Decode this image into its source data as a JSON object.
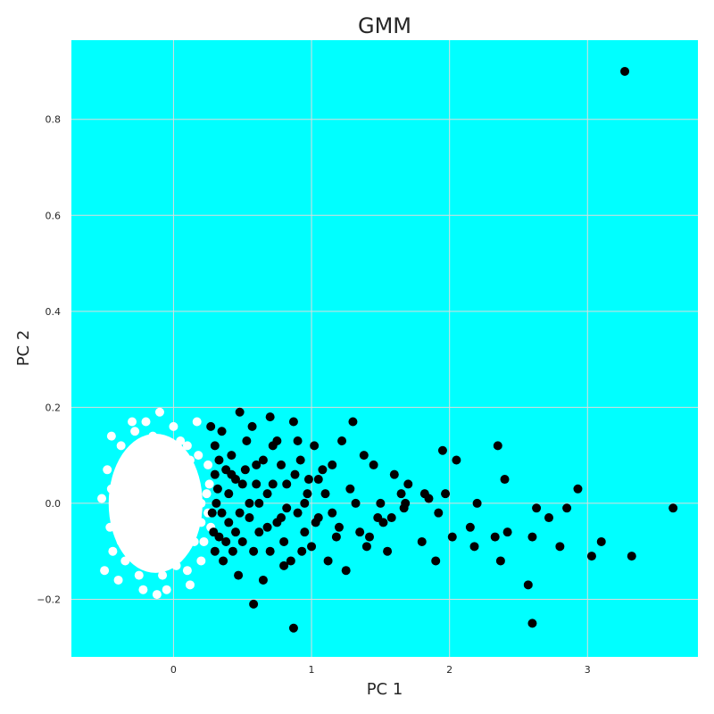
{
  "chart_data": {
    "type": "scatter",
    "title": "GMM",
    "xlabel": "PC 1",
    "ylabel": "PC 2",
    "xlim": [
      -0.74,
      3.8
    ],
    "ylim": [
      -0.32,
      0.965
    ],
    "xticks": [
      0,
      1,
      2,
      3
    ],
    "xtick_labels": [
      "0",
      "1",
      "2",
      "3"
    ],
    "yticks": [
      -0.2,
      0.0,
      0.2,
      0.4,
      0.6,
      0.8
    ],
    "ytick_labels": [
      "−0.2",
      "0.0",
      "0.2",
      "0.4",
      "0.6",
      "0.8"
    ],
    "grid": true,
    "legend": "none",
    "colors": {
      "plot_background": "#00ffff",
      "grid": "#dcdcdc",
      "cluster_0": "#ffffff",
      "cluster_1": "#000000"
    },
    "series": [
      {
        "color": "#ffffff",
        "points": [
          [
            -0.52,
            0.01
          ],
          [
            -0.45,
            0.14
          ],
          [
            -0.3,
            0.17
          ],
          [
            -0.2,
            0.17
          ],
          [
            -0.1,
            0.19
          ],
          [
            0.0,
            0.16
          ],
          [
            0.17,
            0.17
          ],
          [
            -0.5,
            -0.14
          ],
          [
            -0.4,
            -0.16
          ],
          [
            -0.22,
            -0.18
          ],
          [
            -0.12,
            -0.19
          ],
          [
            -0.05,
            -0.18
          ],
          [
            0.12,
            -0.17
          ],
          [
            0.2,
            -0.12
          ],
          [
            0.25,
            0.08
          ],
          [
            0.27,
            -0.05
          ],
          [
            -0.48,
            0.07
          ],
          [
            -0.46,
            -0.05
          ],
          [
            -0.44,
            -0.1
          ],
          [
            -0.38,
            0.12
          ],
          [
            -0.35,
            -0.12
          ],
          [
            -0.28,
            0.15
          ],
          [
            -0.25,
            -0.15
          ],
          [
            -0.15,
            0.14
          ],
          [
            -0.08,
            -0.15
          ],
          [
            0.05,
            0.13
          ],
          [
            0.1,
            -0.14
          ],
          [
            0.18,
            0.1
          ],
          [
            0.22,
            -0.08
          ],
          [
            0.24,
            0.02
          ],
          [
            0.26,
            0.04
          ],
          [
            0.25,
            -0.02
          ],
          [
            -0.4,
            0.05
          ],
          [
            -0.35,
            0.0
          ],
          [
            -0.3,
            -0.05
          ],
          [
            -0.25,
            0.08
          ],
          [
            -0.2,
            -0.08
          ],
          [
            -0.15,
            0.03
          ],
          [
            -0.1,
            -0.03
          ],
          [
            -0.05,
            0.06
          ],
          [
            0.0,
            -0.06
          ],
          [
            0.05,
            0.02
          ],
          [
            0.1,
            -0.02
          ],
          [
            0.15,
            0.05
          ],
          [
            0.2,
            -0.04
          ],
          [
            -0.32,
            0.1
          ],
          [
            -0.18,
            0.11
          ],
          [
            0.0,
            0.1
          ],
          [
            0.12,
            0.09
          ],
          [
            -0.3,
            -0.1
          ],
          [
            -0.12,
            -0.11
          ],
          [
            0.05,
            -0.1
          ],
          [
            0.15,
            -0.08
          ],
          [
            -0.42,
            -0.02
          ],
          [
            -0.38,
            -0.08
          ],
          [
            -0.22,
            0.02
          ],
          [
            -0.02,
            0.0
          ],
          [
            0.08,
            0.07
          ],
          [
            0.2,
            0.0
          ],
          [
            -0.45,
            0.03
          ],
          [
            -0.05,
            0.12
          ],
          [
            0.1,
            0.12
          ],
          [
            -0.26,
            -0.02
          ],
          [
            0.02,
            -0.13
          ]
        ]
      },
      {
        "color": "#000000",
        "points": [
          [
            3.27,
            0.9
          ],
          [
            3.62,
            -0.01
          ],
          [
            3.32,
            -0.11
          ],
          [
            3.1,
            -0.08
          ],
          [
            3.03,
            -0.11
          ],
          [
            2.93,
            0.03
          ],
          [
            2.85,
            -0.01
          ],
          [
            2.8,
            -0.09
          ],
          [
            2.72,
            -0.03
          ],
          [
            2.63,
            -0.01
          ],
          [
            2.6,
            -0.07
          ],
          [
            2.6,
            -0.25
          ],
          [
            2.57,
            -0.17
          ],
          [
            2.42,
            -0.06
          ],
          [
            2.4,
            0.05
          ],
          [
            2.37,
            -0.12
          ],
          [
            2.35,
            0.12
          ],
          [
            2.33,
            -0.07
          ],
          [
            2.2,
            0.0
          ],
          [
            2.18,
            -0.09
          ],
          [
            2.15,
            -0.05
          ],
          [
            2.05,
            0.09
          ],
          [
            2.02,
            -0.07
          ],
          [
            1.97,
            0.02
          ],
          [
            1.95,
            0.11
          ],
          [
            1.92,
            -0.02
          ],
          [
            1.9,
            -0.12
          ],
          [
            1.85,
            0.01
          ],
          [
            1.82,
            0.02
          ],
          [
            1.8,
            -0.08
          ],
          [
            1.7,
            0.04
          ],
          [
            1.68,
            0.0
          ],
          [
            1.67,
            -0.01
          ],
          [
            1.65,
            0.02
          ],
          [
            1.6,
            0.06
          ],
          [
            1.58,
            -0.03
          ],
          [
            1.55,
            -0.1
          ],
          [
            1.52,
            -0.04
          ],
          [
            1.5,
            0.0
          ],
          [
            1.48,
            -0.03
          ],
          [
            1.45,
            0.08
          ],
          [
            1.42,
            -0.07
          ],
          [
            1.4,
            -0.09
          ],
          [
            1.38,
            0.1
          ],
          [
            1.35,
            -0.06
          ],
          [
            1.32,
            0.0
          ],
          [
            1.3,
            0.17
          ],
          [
            1.28,
            0.03
          ],
          [
            1.25,
            -0.14
          ],
          [
            1.22,
            0.13
          ],
          [
            1.2,
            -0.05
          ],
          [
            1.18,
            -0.07
          ],
          [
            1.15,
            0.08
          ],
          [
            1.12,
            -0.12
          ],
          [
            1.1,
            0.02
          ],
          [
            1.08,
            0.07
          ],
          [
            1.05,
            -0.03
          ],
          [
            1.02,
            0.12
          ],
          [
            1.0,
            -0.09
          ],
          [
            0.98,
            0.05
          ],
          [
            0.95,
            -0.06
          ],
          [
            0.92,
            0.09
          ],
          [
            0.9,
            -0.02
          ],
          [
            0.87,
            0.17
          ],
          [
            0.87,
            -0.26
          ],
          [
            0.85,
            -0.12
          ],
          [
            0.82,
            0.04
          ],
          [
            0.8,
            -0.08
          ],
          [
            0.78,
            0.08
          ],
          [
            0.75,
            -0.04
          ],
          [
            0.72,
            0.12
          ],
          [
            0.7,
            -0.1
          ],
          [
            0.68,
            0.02
          ],
          [
            0.65,
            0.09
          ],
          [
            0.62,
            -0.06
          ],
          [
            0.6,
            0.04
          ],
          [
            0.58,
            -0.21
          ],
          [
            0.57,
            0.16
          ],
          [
            0.55,
            -0.03
          ],
          [
            0.53,
            0.13
          ],
          [
            0.5,
            -0.08
          ],
          [
            0.48,
            0.19
          ],
          [
            0.47,
            -0.15
          ],
          [
            0.45,
            0.05
          ],
          [
            0.43,
            -0.1
          ],
          [
            0.42,
            0.1
          ],
          [
            0.4,
            -0.04
          ],
          [
            0.38,
            0.07
          ],
          [
            0.36,
            -0.12
          ],
          [
            0.35,
            0.15
          ],
          [
            0.33,
            -0.07
          ],
          [
            0.32,
            0.03
          ],
          [
            0.3,
            0.12
          ],
          [
            0.3,
            -0.1
          ],
          [
            0.28,
            -0.02
          ],
          [
            0.27,
            0.16
          ],
          [
            0.65,
            -0.16
          ],
          [
            0.7,
            0.18
          ],
          [
            0.75,
            0.13
          ],
          [
            0.8,
            -0.13
          ],
          [
            0.9,
            0.13
          ],
          [
            0.95,
            0.0
          ],
          [
            1.05,
            0.05
          ],
          [
            1.15,
            -0.02
          ],
          [
            0.55,
            0.0
          ],
          [
            0.6,
            0.08
          ],
          [
            0.5,
            0.04
          ],
          [
            0.45,
            -0.06
          ],
          [
            0.4,
            0.02
          ],
          [
            0.35,
            -0.02
          ],
          [
            0.38,
            -0.08
          ],
          [
            0.42,
            0.06
          ],
          [
            0.48,
            -0.02
          ],
          [
            0.52,
            0.07
          ],
          [
            0.58,
            -0.1
          ],
          [
            0.62,
            0.0
          ],
          [
            0.68,
            -0.05
          ],
          [
            0.72,
            0.04
          ],
          [
            0.78,
            -0.03
          ],
          [
            0.82,
            -0.01
          ],
          [
            0.88,
            0.06
          ],
          [
            0.93,
            -0.1
          ],
          [
            0.97,
            0.02
          ],
          [
            1.03,
            -0.04
          ],
          [
            0.33,
            0.09
          ],
          [
            0.3,
            0.06
          ],
          [
            0.29,
            -0.06
          ],
          [
            0.31,
            0.0
          ]
        ]
      }
    ]
  }
}
